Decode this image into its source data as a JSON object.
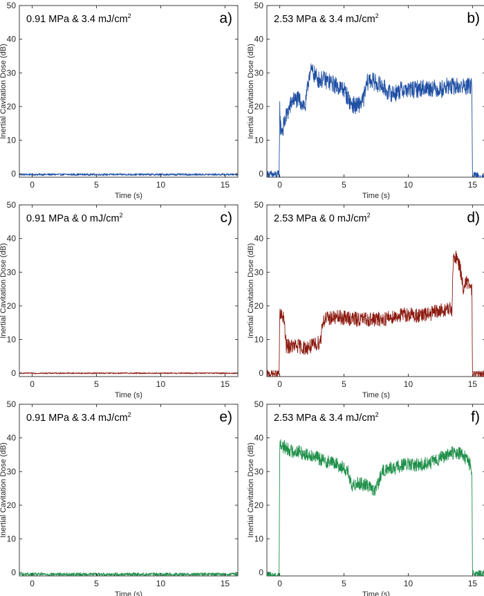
{
  "figure": {
    "ylabel": "Inertial Cavitation Dose (dB)",
    "xlabel": "Time (s)"
  },
  "colors": {
    "blue": "#1f4fa3",
    "red": "#8b1a10",
    "green": "#1e8f49",
    "axis": "#262626"
  },
  "chart_data": [
    {
      "type": "line",
      "panel": "a)",
      "title_main": "0.91 MPa & 3.4 mJ/cm",
      "title_sup": "2",
      "xlabel": "Time (s)",
      "ylabel": "Inertial Cavitation Dose (dB)",
      "xlim": [
        -1,
        16
      ],
      "ylim": [
        -1,
        50
      ],
      "xticks": [
        0,
        5,
        10,
        15
      ],
      "yticks": [
        0,
        10,
        20,
        30,
        40,
        50
      ],
      "color": "blue",
      "series": [
        {
          "x": [
            -1,
            16
          ],
          "y": [
            -0.2,
            -0.2
          ],
          "noise": 0.6
        }
      ]
    },
    {
      "type": "line",
      "panel": "b)",
      "title_main": "2.53 MPa & 3.4 mJ/cm",
      "title_sup": "2",
      "xlabel": "Time (s)",
      "ylabel": "Inertial Cavitation Dose (dB)",
      "xlim": [
        -1,
        16
      ],
      "ylim": [
        -1,
        50
      ],
      "xticks": [
        0,
        5,
        10,
        15
      ],
      "yticks": [
        0,
        10,
        20,
        30,
        40,
        50
      ],
      "color": "blue",
      "series": [
        {
          "x": [
            -1,
            -0.05,
            0,
            0.05,
            0.2,
            0.5,
            1,
            1.5,
            2,
            2.3,
            2.5,
            3,
            3.5,
            4,
            4.5,
            5,
            5.5,
            6,
            6.5,
            6.8,
            7,
            7.5,
            8,
            8.5,
            9,
            9.5,
            10,
            10.5,
            11,
            11.5,
            12,
            12.5,
            13,
            13.5,
            14,
            14.5,
            14.95,
            15.0,
            15.05,
            16
          ],
          "y": [
            -0.3,
            -0.3,
            20,
            14,
            13,
            17,
            22,
            22,
            20,
            30,
            30.5,
            28,
            28,
            27,
            26,
            25,
            21,
            20,
            22,
            27,
            28,
            27,
            26,
            24,
            24,
            25,
            25,
            25,
            25.5,
            25.5,
            25.5,
            25,
            26,
            26,
            26,
            26,
            26,
            0,
            -0.8,
            -0.8
          ],
          "noise": 2.6
        }
      ]
    },
    {
      "type": "line",
      "panel": "c)",
      "title_main": "0.91 MPa & 0 mJ/cm",
      "title_sup": "2",
      "xlabel": "Time (s)",
      "ylabel": "Inertial Cavitation Dose (dB)",
      "xlim": [
        -1,
        16
      ],
      "ylim": [
        -1,
        50
      ],
      "xticks": [
        0,
        5,
        10,
        15
      ],
      "yticks": [
        0,
        10,
        20,
        30,
        40,
        50
      ],
      "color": "red",
      "series": [
        {
          "x": [
            -1,
            16
          ],
          "y": [
            0,
            0
          ],
          "noise": 0.4
        }
      ]
    },
    {
      "type": "line",
      "panel": "d)",
      "title_main": "2.53 MPa & 0 mJ/cm",
      "title_sup": "2",
      "xlabel": "Time (s)",
      "ylabel": "Inertial Cavitation Dose (dB)",
      "xlim": [
        -1,
        16
      ],
      "ylim": [
        -1,
        50
      ],
      "xticks": [
        0,
        5,
        10,
        15
      ],
      "yticks": [
        0,
        10,
        20,
        30,
        40,
        50
      ],
      "color": "red",
      "series": [
        {
          "x": [
            -1,
            -0.05,
            0,
            0.3,
            0.5,
            1,
            1.5,
            2,
            2.5,
            3,
            3.2,
            3.3,
            3.5,
            4,
            5,
            6,
            7,
            8,
            9,
            10,
            11,
            12,
            12.5,
            13,
            13.4,
            13.5,
            13.7,
            14,
            14.3,
            14.5,
            14.8,
            14.95,
            15.0,
            15.05,
            16
          ],
          "y": [
            -0.2,
            -0.2,
            17,
            17,
            8,
            8,
            8,
            7.5,
            8,
            9,
            10,
            15,
            16,
            16.5,
            16.5,
            16,
            16,
            16,
            17,
            17.5,
            17,
            18,
            18.5,
            19,
            19,
            33,
            35,
            32,
            25,
            27,
            26,
            25,
            0,
            -0.3,
            -0.3
          ],
          "noise": 2.2
        }
      ]
    },
    {
      "type": "line",
      "panel": "e)",
      "title_main": "0.91 MPa & 3.4 mJ/cm",
      "title_sup": "2",
      "xlabel": "Time (s)",
      "ylabel": "Inertial Cavitation Dose (dB)",
      "xlim": [
        -1,
        16
      ],
      "ylim": [
        -1,
        50
      ],
      "xticks": [
        0,
        5,
        10,
        15
      ],
      "yticks": [
        0,
        10,
        20,
        30,
        40,
        50
      ],
      "color": "green",
      "series": [
        {
          "x": [
            -1,
            16
          ],
          "y": [
            -0.5,
            -0.5
          ],
          "noise": 0.9
        }
      ]
    },
    {
      "type": "line",
      "panel": "f)",
      "title_main": "2.53 MPa & 3.4 mJ/cm",
      "title_sup": "2",
      "xlabel": "Time (s)",
      "ylabel": "Inertial Cavitation Dose (dB)",
      "xlim": [
        -1,
        16
      ],
      "ylim": [
        -1,
        50
      ],
      "xticks": [
        0,
        5,
        10,
        15
      ],
      "yticks": [
        0,
        10,
        20,
        30,
        40,
        50
      ],
      "color": "green",
      "series": [
        {
          "x": [
            -1,
            -0.05,
            0,
            0.5,
            1,
            1.5,
            2,
            2.5,
            3,
            3.5,
            4,
            4.5,
            5,
            5.3,
            5.6,
            6,
            6.5,
            7,
            7.3,
            7.5,
            7.8,
            8,
            8.5,
            9,
            9.5,
            10,
            10.5,
            11,
            11.5,
            12,
            12.5,
            13,
            13.5,
            14,
            14.5,
            14.8,
            14.95,
            15.0,
            15.05,
            16
          ],
          "y": [
            -0.8,
            -0.8,
            38,
            37,
            36,
            36,
            35,
            35,
            34,
            33,
            33,
            32,
            31,
            30,
            25,
            27,
            26,
            26,
            24,
            25,
            28,
            30,
            31,
            31,
            32,
            32,
            32,
            32,
            32.5,
            33,
            34,
            35,
            35.5,
            35.5,
            34,
            32,
            30,
            0,
            -0.3,
            -0.3
          ],
          "noise": 2.0
        }
      ]
    }
  ]
}
